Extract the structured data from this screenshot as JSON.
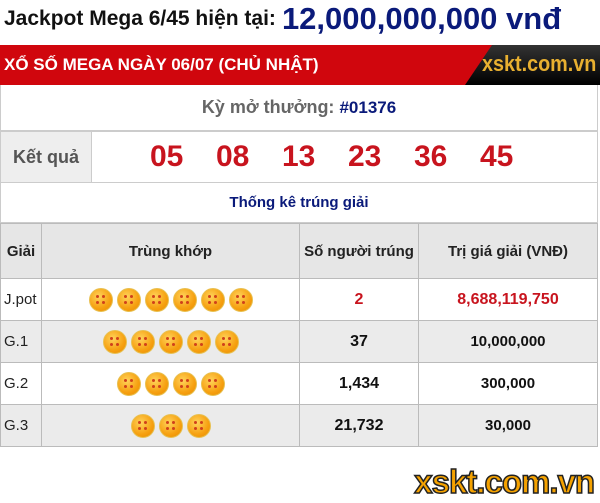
{
  "jackpot": {
    "label": "Jackpot Mega 6/45 hiện tại:",
    "value": "12,000,000,000 vnđ"
  },
  "header": {
    "title": "XỔ SỐ MEGA NGÀY 06/07 (CHỦ NHẬT)",
    "logo": "xskt.com.vn"
  },
  "draw": {
    "label": "Kỳ mở thưởng:",
    "id": "#01376"
  },
  "result": {
    "label": "Kết quả",
    "numbers": [
      "05",
      "08",
      "13",
      "23",
      "36",
      "45"
    ]
  },
  "stats_title": "Thống kê trúng giải",
  "table": {
    "headers": [
      "Giải",
      "Trùng khớp",
      "Số người trúng",
      "Trị giá giải (VNĐ)"
    ],
    "rows": [
      {
        "prize": "J.pot",
        "matches": 6,
        "winners": "2",
        "value": "8,688,119,750"
      },
      {
        "prize": "G.1",
        "matches": 5,
        "winners": "37",
        "value": "10,000,000"
      },
      {
        "prize": "G.2",
        "matches": 4,
        "winners": "1,434",
        "value": "300,000"
      },
      {
        "prize": "G.3",
        "matches": 3,
        "winners": "21,732",
        "value": "30,000"
      }
    ]
  },
  "watermark": "xskt.com.vn"
}
